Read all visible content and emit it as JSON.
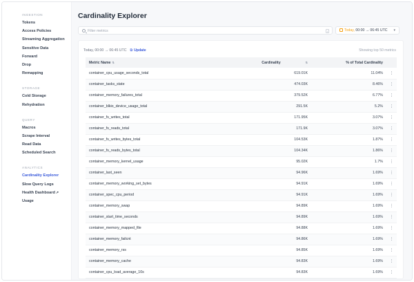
{
  "sidebar": {
    "sections": [
      {
        "heading": "INGESTION",
        "items": [
          "Tokens",
          "Access Policies",
          "Streaming Aggregation",
          "Sensitive Data",
          "Forward",
          "Drop",
          "Remapping"
        ]
      },
      {
        "heading": "STORAGE",
        "items": [
          "Cold Storage",
          "Rehydration"
        ]
      },
      {
        "heading": "QUERY",
        "items": [
          "Macros",
          "Scrape Interval",
          "Read Data",
          "Scheduled Search"
        ]
      },
      {
        "heading": "ANALYTICS",
        "items": [
          "Cardinality Explorer",
          "Slow Query Logs",
          "Health Dashboard",
          "Usage"
        ]
      }
    ],
    "active_item": "Cardinality Explorer",
    "external_marker": "↗"
  },
  "header": {
    "title": "Cardinality Explorer"
  },
  "search": {
    "placeholder": "Filter metrics",
    "value": "",
    "shortcut": "/"
  },
  "date_range": {
    "today": "Today,",
    "range": "00:00 → 06:45 UTC",
    "chevron": "▾"
  },
  "summary": {
    "range_text": "Today, 00:00 → 06:45 UTC",
    "update_label": "Update",
    "showing_text": "Showing top 50 metrics"
  },
  "table": {
    "columns": {
      "metric": "Metric Name",
      "cardinality": "Cardinality",
      "percent": "% of Total Cardinality"
    },
    "rows": [
      {
        "metric": "container_cpu_usage_seconds_total",
        "cardinality": "619.01K",
        "percent": "11.04%"
      },
      {
        "metric": "container_tasks_state",
        "cardinality": "474.03K",
        "percent": "8.46%"
      },
      {
        "metric": "container_memory_failures_total",
        "cardinality": "379.52K",
        "percent": "6.77%"
      },
      {
        "metric": "container_blkio_device_usage_total",
        "cardinality": "291.5K",
        "percent": "5.2%"
      },
      {
        "metric": "container_fs_writes_total",
        "cardinality": "171.95K",
        "percent": "3.07%"
      },
      {
        "metric": "container_fs_reads_total",
        "cardinality": "171.9K",
        "percent": "3.07%"
      },
      {
        "metric": "container_fs_writes_bytes_total",
        "cardinality": "104.53K",
        "percent": "1.87%"
      },
      {
        "metric": "container_fs_reads_bytes_total",
        "cardinality": "104.34K",
        "percent": "1.86%"
      },
      {
        "metric": "container_memory_kernel_usage",
        "cardinality": "95.02K",
        "percent": "1.7%"
      },
      {
        "metric": "container_last_seen",
        "cardinality": "94.96K",
        "percent": "1.69%"
      },
      {
        "metric": "container_memory_working_set_bytes",
        "cardinality": "94.91K",
        "percent": "1.69%"
      },
      {
        "metric": "container_spec_cpu_period",
        "cardinality": "94.91K",
        "percent": "1.69%"
      },
      {
        "metric": "container_memory_swap",
        "cardinality": "94.89K",
        "percent": "1.69%"
      },
      {
        "metric": "container_start_time_seconds",
        "cardinality": "94.89K",
        "percent": "1.69%"
      },
      {
        "metric": "container_memory_mapped_file",
        "cardinality": "94.88K",
        "percent": "1.69%"
      },
      {
        "metric": "container_memory_failcnt",
        "cardinality": "94.86K",
        "percent": "1.69%"
      },
      {
        "metric": "container_memory_rss",
        "cardinality": "94.85K",
        "percent": "1.69%"
      },
      {
        "metric": "container_memory_cache",
        "cardinality": "94.83K",
        "percent": "1.69%"
      },
      {
        "metric": "container_cpu_load_average_10s",
        "cardinality": "94.83K",
        "percent": "1.69%"
      }
    ]
  },
  "colors": {
    "accent": "#3b5bdb",
    "date_accent": "#f59e0b"
  }
}
